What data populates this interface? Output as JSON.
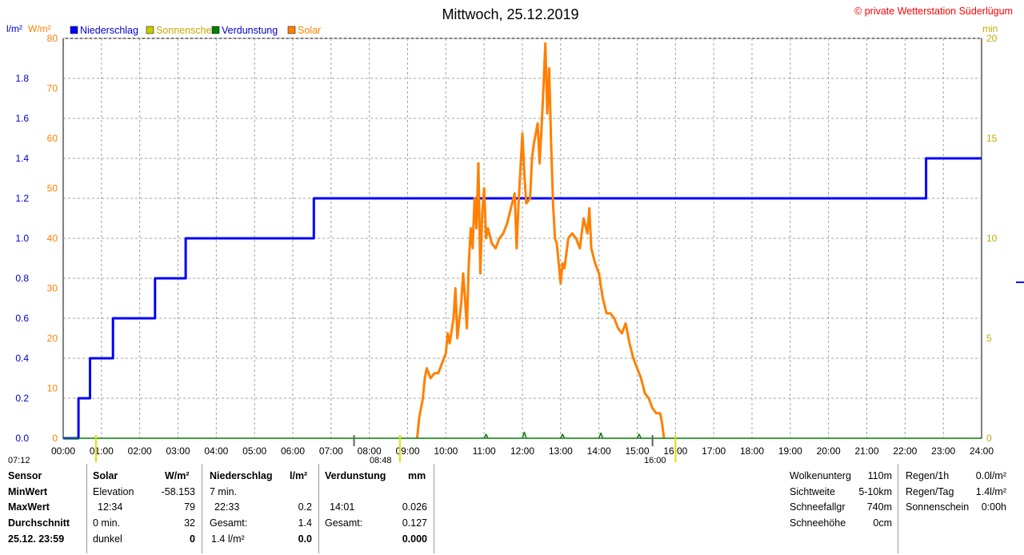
{
  "header": {
    "title": "Mittwoch, 25.12.2019",
    "copyright": "© private Wetterstation Süderlügum",
    "left_units": "l/m²",
    "left_units2": "W/m²",
    "right_units": "min"
  },
  "legend": [
    {
      "label": "Niederschlag",
      "color": "#0000ff"
    },
    {
      "label": "Sonnenschein",
      "color": "#c8c800"
    },
    {
      "label": "Verdunstung",
      "color": "#008000"
    },
    {
      "label": "Solar",
      "color": "#ff8000"
    }
  ],
  "colors": {
    "rain": "#0000ff",
    "solar": "#ff8000",
    "sun": "#c8c800",
    "evap": "#008000",
    "copyright": "#ff0000",
    "grid": "#a0a0a0"
  },
  "sun_markers": {
    "sunrise": "07:12",
    "sunrise_bar": "08:48",
    "sunset": "16:00"
  },
  "chart_data": {
    "type": "line",
    "x_label": "",
    "x_ticks": [
      "00:00",
      "01:00",
      "02:00",
      "03:00",
      "04:00",
      "05:00",
      "06:00",
      "07:00",
      "08:00",
      "09:00",
      "10:00",
      "11:00",
      "12:00",
      "13:00",
      "14:00",
      "15:00",
      "16:00",
      "17:00",
      "18:00",
      "19:00",
      "20:00",
      "21:00",
      "22:00",
      "23:00",
      "24:00"
    ],
    "x_range_hours": [
      0,
      24
    ],
    "left_axis_rain": {
      "unit": "l/m²",
      "range": [
        0,
        2.0
      ],
      "ticks": [
        "0.0",
        "0.2",
        "0.4",
        "0.6",
        "0.8",
        "1.0",
        "1.2",
        "1.4",
        "1.6",
        "1.8"
      ]
    },
    "left_axis_solar": {
      "unit": "W/m²",
      "range": [
        0,
        80
      ],
      "ticks": [
        "0",
        "10",
        "20",
        "30",
        "40",
        "50",
        "60",
        "70",
        "80"
      ]
    },
    "right_axis_minutes": {
      "unit": "min",
      "range": [
        0,
        20
      ],
      "ticks": [
        "0",
        "5",
        "10",
        "15",
        "20"
      ]
    },
    "grid": true,
    "series": [
      {
        "name": "Niederschlag",
        "axis": "rain",
        "step": true,
        "points": [
          [
            0,
            0
          ],
          [
            0.4,
            0
          ],
          [
            0.4,
            0.2
          ],
          [
            0.7,
            0.2
          ],
          [
            0.7,
            0.4
          ],
          [
            1.3,
            0.4
          ],
          [
            1.3,
            0.6
          ],
          [
            2.4,
            0.6
          ],
          [
            2.4,
            0.8
          ],
          [
            3.2,
            0.8
          ],
          [
            3.2,
            1.0
          ],
          [
            6.55,
            1.0
          ],
          [
            6.55,
            1.2
          ],
          [
            22.55,
            1.2
          ],
          [
            22.55,
            1.4
          ],
          [
            24,
            1.4
          ]
        ]
      },
      {
        "name": "Solar",
        "axis": "solar",
        "points": [
          [
            9.25,
            0
          ],
          [
            9.3,
            4
          ],
          [
            9.4,
            8
          ],
          [
            9.45,
            12
          ],
          [
            9.5,
            14
          ],
          [
            9.6,
            12
          ],
          [
            9.7,
            13
          ],
          [
            9.8,
            13
          ],
          [
            9.9,
            15
          ],
          [
            10.0,
            17
          ],
          [
            10.05,
            21
          ],
          [
            10.1,
            19
          ],
          [
            10.2,
            24
          ],
          [
            10.25,
            30
          ],
          [
            10.3,
            20
          ],
          [
            10.4,
            27
          ],
          [
            10.45,
            33
          ],
          [
            10.5,
            28
          ],
          [
            10.55,
            22
          ],
          [
            10.6,
            35
          ],
          [
            10.65,
            42
          ],
          [
            10.7,
            38
          ],
          [
            10.75,
            48
          ],
          [
            10.8,
            42
          ],
          [
            10.85,
            55
          ],
          [
            10.9,
            33
          ],
          [
            10.95,
            45
          ],
          [
            11.0,
            50
          ],
          [
            11.05,
            40
          ],
          [
            11.1,
            42
          ],
          [
            11.2,
            39
          ],
          [
            11.3,
            38
          ],
          [
            11.4,
            40
          ],
          [
            11.5,
            41
          ],
          [
            11.6,
            43
          ],
          [
            11.7,
            46
          ],
          [
            11.8,
            49
          ],
          [
            11.85,
            38
          ],
          [
            11.9,
            47
          ],
          [
            12.0,
            61
          ],
          [
            12.05,
            53
          ],
          [
            12.1,
            47
          ],
          [
            12.2,
            48
          ],
          [
            12.25,
            56
          ],
          [
            12.3,
            59
          ],
          [
            12.4,
            63
          ],
          [
            12.45,
            55
          ],
          [
            12.5,
            62
          ],
          [
            12.55,
            70
          ],
          [
            12.6,
            79
          ],
          [
            12.65,
            65
          ],
          [
            12.7,
            74
          ],
          [
            12.75,
            59
          ],
          [
            12.8,
            47
          ],
          [
            12.85,
            40
          ],
          [
            12.9,
            39
          ],
          [
            13.0,
            31
          ],
          [
            13.05,
            35
          ],
          [
            13.1,
            34
          ],
          [
            13.2,
            40
          ],
          [
            13.3,
            41
          ],
          [
            13.4,
            40
          ],
          [
            13.5,
            38
          ],
          [
            13.6,
            44
          ],
          [
            13.7,
            41
          ],
          [
            13.75,
            46
          ],
          [
            13.8,
            38
          ],
          [
            13.9,
            35
          ],
          [
            14.0,
            33
          ],
          [
            14.1,
            28
          ],
          [
            14.2,
            25
          ],
          [
            14.3,
            25
          ],
          [
            14.4,
            24
          ],
          [
            14.5,
            22
          ],
          [
            14.6,
            21
          ],
          [
            14.7,
            23
          ],
          [
            14.75,
            21
          ],
          [
            14.8,
            19
          ],
          [
            14.9,
            16
          ],
          [
            15.0,
            14
          ],
          [
            15.1,
            12
          ],
          [
            15.2,
            9
          ],
          [
            15.3,
            8
          ],
          [
            15.4,
            6
          ],
          [
            15.5,
            5
          ],
          [
            15.6,
            5
          ],
          [
            15.65,
            3
          ],
          [
            15.7,
            0
          ]
        ]
      },
      {
        "name": "Verdunstung",
        "axis": "rain",
        "points": [
          [
            0,
            0
          ],
          [
            11.0,
            0
          ],
          [
            11.05,
            0.02
          ],
          [
            11.1,
            0
          ],
          [
            12.0,
            0
          ],
          [
            12.05,
            0.03
          ],
          [
            12.1,
            0
          ],
          [
            13.0,
            0
          ],
          [
            13.05,
            0.02
          ],
          [
            13.1,
            0
          ],
          [
            14.0,
            0
          ],
          [
            14.05,
            0.026
          ],
          [
            14.1,
            0
          ],
          [
            15.0,
            0
          ],
          [
            15.05,
            0.02
          ],
          [
            15.1,
            0
          ],
          [
            24,
            0
          ]
        ]
      }
    ]
  },
  "info": {
    "sensor": {
      "header": "Sensor",
      "rows": [
        "MinWert",
        "MaxWert",
        "Durchschnitt",
        "25.12. 23:59"
      ]
    },
    "solar": {
      "header": "Solar",
      "unit": "W/m²",
      "rows": [
        [
          "Elevation",
          "-58.153"
        ],
        [
          "12:34",
          "79"
        ],
        [
          "0 min.",
          "32"
        ],
        [
          "dunkel",
          "0"
        ]
      ]
    },
    "rain": {
      "header": "Niederschlag",
      "unit": "l/m²",
      "rows": [
        [
          "7 min.",
          ""
        ],
        [
          "22:33",
          "0.2"
        ],
        [
          "Gesamt:",
          "1.4"
        ],
        [
          "1.4 l/m²",
          "0.0"
        ]
      ]
    },
    "evap": {
      "header": "Verdunstung",
      "unit": "mm",
      "rows": [
        [
          "",
          ""
        ],
        [
          "14:01",
          "0.026"
        ],
        [
          "Gesamt:",
          "0.127"
        ],
        [
          "",
          "0.000"
        ]
      ]
    },
    "weather": [
      [
        "Wolkenunterg",
        "110m"
      ],
      [
        "Sichtweite",
        "5-10km"
      ],
      [
        "Schneefallgr",
        "740m"
      ],
      [
        "Schneehöhe",
        "0cm"
      ]
    ],
    "regen": [
      [
        "Regen/1h",
        "0.0l/m²"
      ],
      [
        "Regen/Tag",
        "1.4l/m²"
      ],
      [
        "Sonnenschein",
        "0:00h"
      ]
    ]
  }
}
